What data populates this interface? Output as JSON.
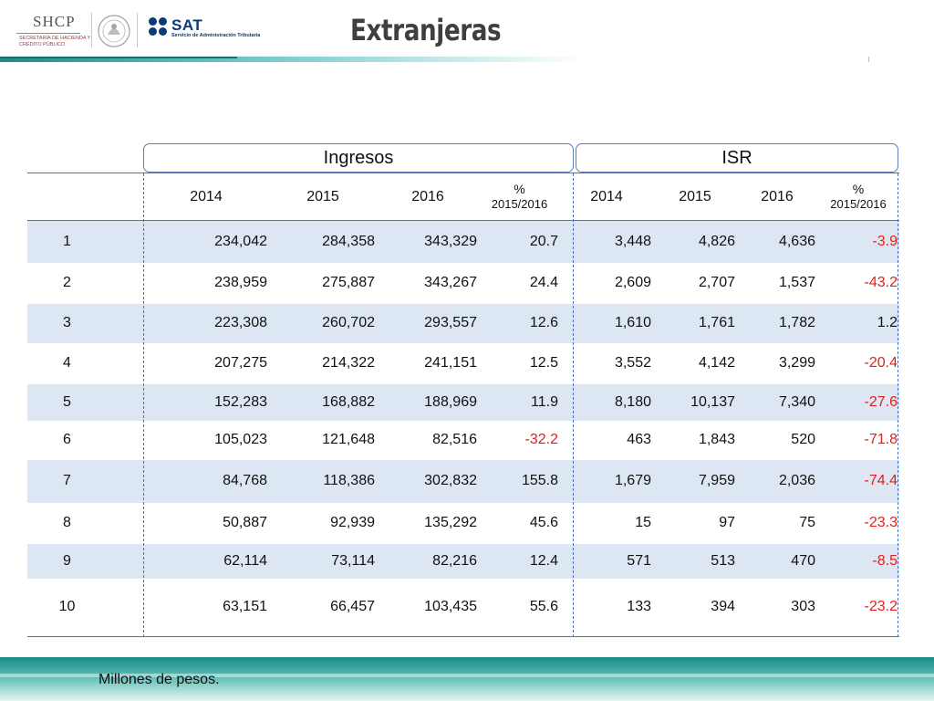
{
  "header": {
    "shcp_name": "SHCP",
    "shcp_subtitle": "SECRETARÍA DE HACIENDA Y CRÉDITO PÚBLICO",
    "sat_name": "SAT",
    "sat_subtitle": "Servicio de Administración Tributaria",
    "title": "Extranjeras"
  },
  "groups": {
    "ingresos": "Ingresos",
    "isr": "ISR"
  },
  "columns": {
    "c1": "2014",
    "c2": "2015",
    "c3": "2016",
    "c4_top": "%",
    "c4_bot": "2015/2016",
    "c5": "2014",
    "c6": "2015",
    "c7": "2016",
    "c8_top": "%",
    "c8_bot": "2015/2016"
  },
  "rows": [
    {
      "rank": "1",
      "i2014": "234,042",
      "i2015": "284,358",
      "i2016": "343,329",
      "ipct": "20.7",
      "s2014": "3,448",
      "s2015": "4,826",
      "s2016": "4,636",
      "spct": "-3.9"
    },
    {
      "rank": "2",
      "i2014": "238,959",
      "i2015": "275,887",
      "i2016": "343,267",
      "ipct": "24.4",
      "s2014": "2,609",
      "s2015": "2,707",
      "s2016": "1,537",
      "spct": "-43.2"
    },
    {
      "rank": "3",
      "i2014": "223,308",
      "i2015": "260,702",
      "i2016": "293,557",
      "ipct": "12.6",
      "s2014": "1,610",
      "s2015": "1,761",
      "s2016": "1,782",
      "spct": "1.2"
    },
    {
      "rank": "4",
      "i2014": "207,275",
      "i2015": "214,322",
      "i2016": "241,151",
      "ipct": "12.5",
      "s2014": "3,552",
      "s2015": "4,142",
      "s2016": "3,299",
      "spct": "-20.4"
    },
    {
      "rank": "5",
      "i2014": "152,283",
      "i2015": "168,882",
      "i2016": "188,969",
      "ipct": "11.9",
      "s2014": "8,180",
      "s2015": "10,137",
      "s2016": "7,340",
      "spct": "-27.6"
    },
    {
      "rank": "6",
      "i2014": "105,023",
      "i2015": "121,648",
      "i2016": "82,516",
      "ipct": "-32.2",
      "s2014": "463",
      "s2015": "1,843",
      "s2016": "520",
      "spct": "-71.8"
    },
    {
      "rank": "7",
      "i2014": "84,768",
      "i2015": "118,386",
      "i2016": "302,832",
      "ipct": "155.8",
      "s2014": "1,679",
      "s2015": "7,959",
      "s2016": "2,036",
      "spct": "-74.4"
    },
    {
      "rank": "8",
      "i2014": "50,887",
      "i2015": "92,939",
      "i2016": "135,292",
      "ipct": "45.6",
      "s2014": "15",
      "s2015": "97",
      "s2016": "75",
      "spct": "-23.3"
    },
    {
      "rank": "9",
      "i2014": "62,114",
      "i2015": "73,114",
      "i2016": "82,216",
      "ipct": "12.4",
      "s2014": "571",
      "s2015": "513",
      "s2016": "470",
      "spct": "-8.5"
    },
    {
      "rank": "10",
      "i2014": "63,151",
      "i2015": "66,457",
      "i2016": "103,435",
      "ipct": "55.6",
      "s2014": "133",
      "s2015": "394",
      "s2016": "303",
      "spct": "-23.2"
    }
  ],
  "footer": {
    "note": "Millones de pesos."
  },
  "colors": {
    "negative": "#e0201b",
    "row_shade": "#dde6f3",
    "rule_blue": "#4a72c4",
    "teal": "#1f8a8a"
  }
}
